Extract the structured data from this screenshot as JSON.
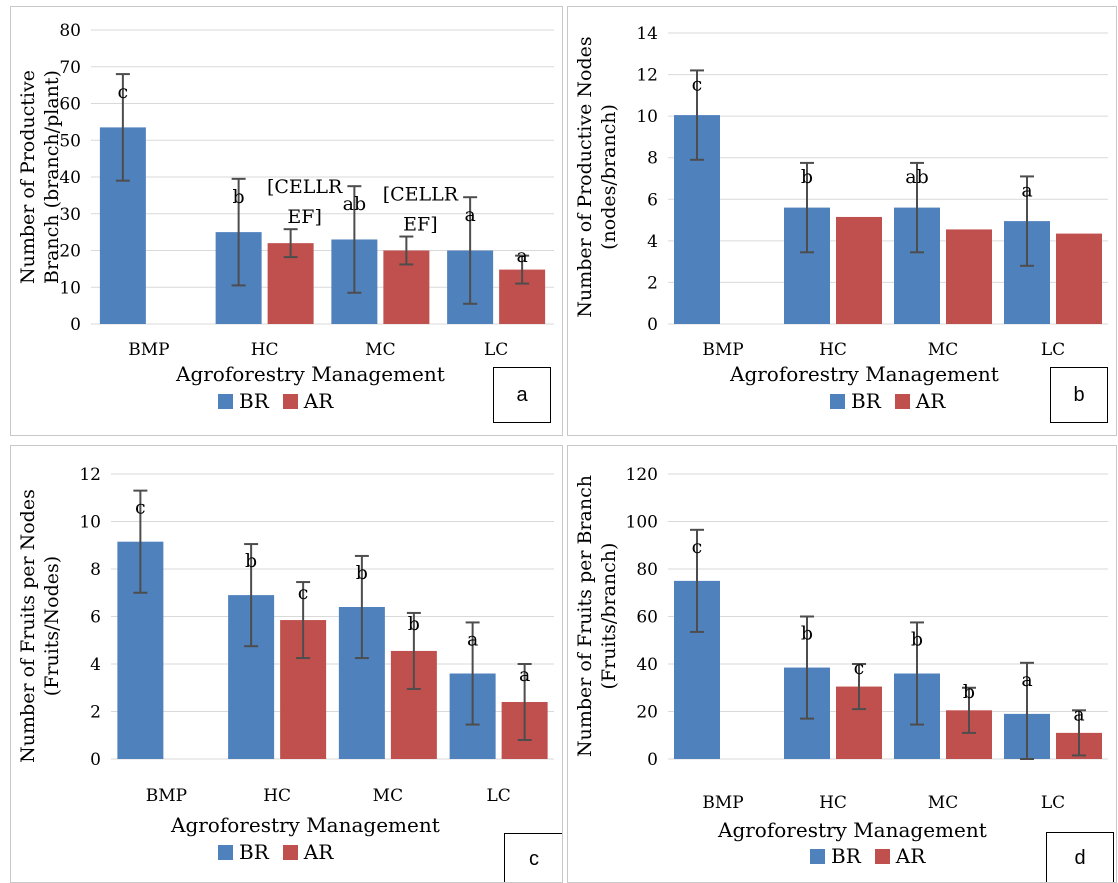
{
  "colors": {
    "BR": "#4f81bd",
    "AR": "#c0504d",
    "grid": "#d9d9d9",
    "error": "#4d4d4d"
  },
  "chart_data": [
    {
      "type": "bar",
      "panel_label": "a",
      "categories": [
        "BMP",
        "HC",
        "MC",
        "LC"
      ],
      "xlabel": "Agroforestry Management",
      "ylabel": "Number of Productive\nBranch (branch/plant)",
      "ylim": [
        0,
        80
      ],
      "yticks": [
        0,
        10,
        20,
        30,
        40,
        50,
        60,
        70,
        80
      ],
      "grid": true,
      "legend": "bottom",
      "series": [
        {
          "name": "BR",
          "values": [
            53.5,
            25,
            23,
            20
          ],
          "errors": [
            14.5,
            14.5,
            14.5,
            14.5
          ],
          "letters": [
            "c",
            "b",
            "ab",
            "a"
          ]
        },
        {
          "name": "AR",
          "values": [
            null,
            22,
            20,
            14.8
          ],
          "errors": [
            null,
            3.8,
            3.8,
            3.8
          ],
          "letters": [
            "",
            "[CELLR\nEF]",
            "[CELLR\nEF]",
            "a"
          ]
        }
      ]
    },
    {
      "type": "bar",
      "panel_label": "b",
      "categories": [
        "BMP",
        "HC",
        "MC",
        "LC"
      ],
      "xlabel": "Agroforestry Management",
      "ylabel": "Number of Productive Nodes\n(nodes/branch)",
      "ylim": [
        0,
        14
      ],
      "yticks": [
        0,
        2,
        4,
        6,
        8,
        10,
        12,
        14
      ],
      "grid": true,
      "legend": "bottom",
      "series": [
        {
          "name": "BR",
          "values": [
            10.05,
            5.6,
            5.6,
            4.95
          ],
          "errors": [
            2.15,
            2.15,
            2.15,
            2.15
          ],
          "letters": [
            "c",
            "b",
            "ab",
            "a"
          ]
        },
        {
          "name": "AR",
          "values": [
            null,
            5.15,
            4.55,
            4.35
          ],
          "errors": [
            null,
            null,
            null,
            null
          ],
          "letters": [
            "",
            "",
            "",
            ""
          ]
        }
      ]
    },
    {
      "type": "bar",
      "panel_label": "c",
      "categories": [
        "BMP",
        "HC",
        "MC",
        "LC"
      ],
      "xlabel": "Agroforestry Management",
      "ylabel": "Number of Fruits per Nodes\n(Fruits/Nodes)",
      "ylim": [
        0,
        12
      ],
      "yticks": [
        0,
        2,
        4,
        6,
        8,
        10,
        12
      ],
      "grid": true,
      "legend": "bottom",
      "series": [
        {
          "name": "BR",
          "values": [
            9.15,
            6.9,
            6.4,
            3.6
          ],
          "errors": [
            2.15,
            2.15,
            2.15,
            2.15
          ],
          "letters": [
            "c",
            "b",
            "b",
            "a"
          ]
        },
        {
          "name": "AR",
          "values": [
            null,
            5.85,
            4.55,
            2.4
          ],
          "errors": [
            null,
            1.6,
            1.6,
            1.6
          ],
          "letters": [
            "",
            "c",
            "b",
            "a"
          ]
        }
      ]
    },
    {
      "type": "bar",
      "panel_label": "d",
      "categories": [
        "BMP",
        "HC",
        "MC",
        "LC"
      ],
      "xlabel": "Agroforestry Management",
      "ylabel": "Number of Fruits per Branch\n(Fruits/branch)",
      "ylim": [
        0,
        120
      ],
      "yticks": [
        0,
        20,
        40,
        60,
        80,
        100,
        120
      ],
      "grid": true,
      "legend": "bottom",
      "series": [
        {
          "name": "BR",
          "values": [
            75,
            38.5,
            36,
            19
          ],
          "errors": [
            21.5,
            21.5,
            21.5,
            21.5
          ],
          "letters": [
            "c",
            "b",
            "b",
            "a"
          ]
        },
        {
          "name": "AR",
          "values": [
            null,
            30.5,
            20.5,
            11
          ],
          "errors": [
            null,
            9.5,
            9.5,
            9.5
          ],
          "letters": [
            "",
            "c",
            "b",
            "a"
          ]
        }
      ]
    }
  ]
}
